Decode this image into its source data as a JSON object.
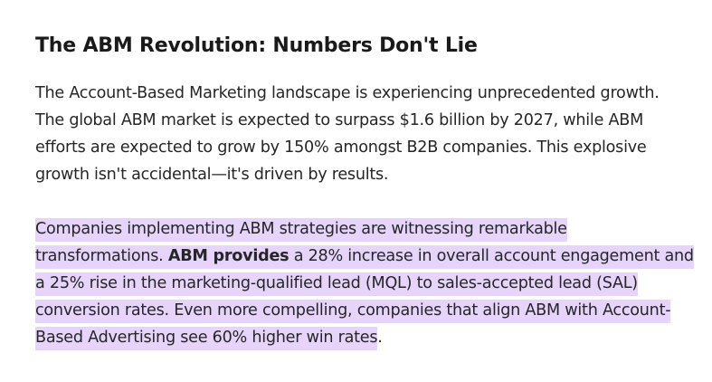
{
  "article": {
    "heading": "The ABM Revolution: Numbers Don't Lie",
    "paragraph1": {
      "lines": [
        "The Account-Based Marketing landscape is experiencing unprecedented growth.",
        "The global ABM market is expected to surpass $1.6 billion by 2027, while ABM",
        "efforts are expected to grow by 150% amongst B2B companies. This explosive",
        "growth isn't accidental—it's driven by results."
      ]
    },
    "paragraph2": {
      "line1": "Companies implementing ABM strategies are witnessing remarkable",
      "line2_pre": "transformations. ",
      "line2_bold": "ABM provides",
      "line2_post": " a 28% increase in overall account engagement and",
      "line3": "a 25% rise in the marketing-qualified lead (MQL) to sales-accepted lead (SAL)",
      "line4": "conversion rates. Even more compelling, companies that align ABM with Account-",
      "line5": "Based Advertising see 60% higher win rates",
      "line5_end": "."
    },
    "highlight_color": "#e6d4fb"
  }
}
